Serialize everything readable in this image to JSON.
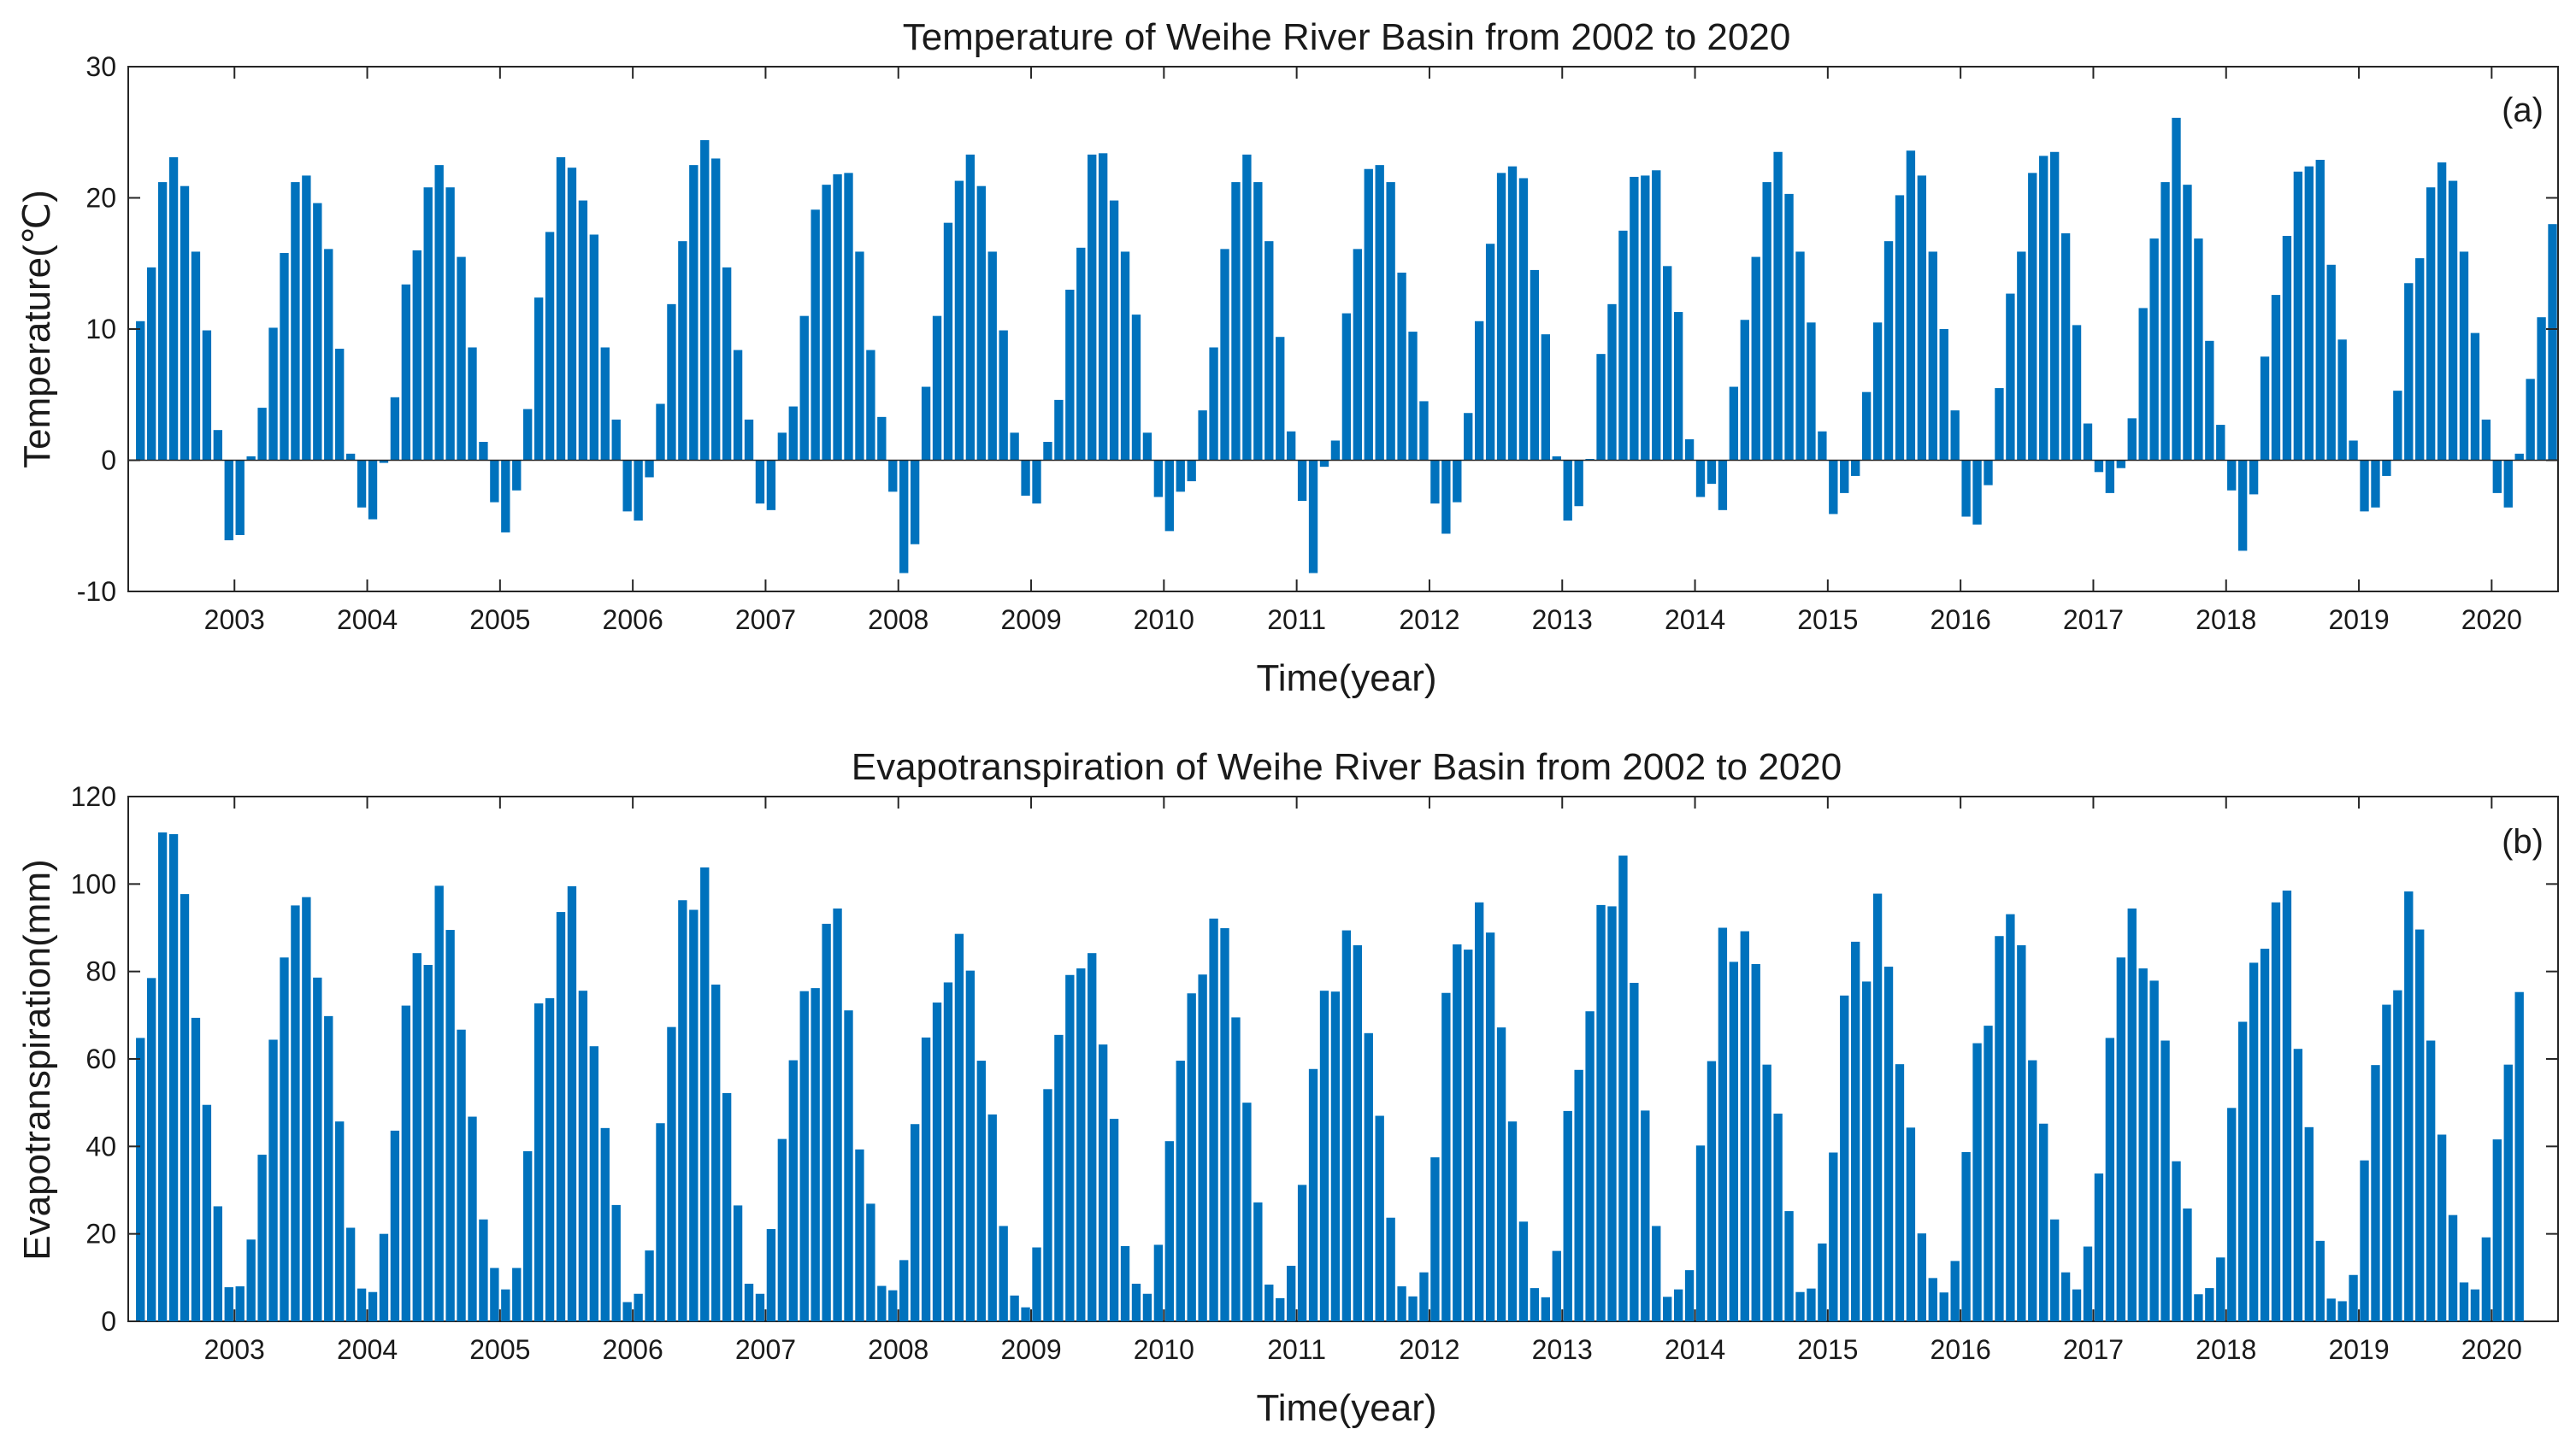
{
  "colors": {
    "bar": "#0072BD",
    "axis": "#262626",
    "background": "#ffffff"
  },
  "chart_data": [
    {
      "type": "bar",
      "panel_tag": "(a)",
      "title": "Temperature of Weihe River Basin from 2002 to 2020",
      "xlabel": "Time(year)",
      "ylabel": "Temperature(℃)",
      "ylim": [
        -10,
        30
      ],
      "yticks": [
        -10,
        0,
        10,
        20,
        30
      ],
      "ytick_labels": [
        "-10",
        "0",
        "10",
        "20",
        "30"
      ],
      "xticks": [
        2003,
        2004,
        2005,
        2006,
        2007,
        2008,
        2009,
        2010,
        2011,
        2012,
        2013,
        2014,
        2015,
        2016,
        2017,
        2018,
        2019,
        2020
      ],
      "xtick_labels": [
        "2003",
        "2004",
        "2005",
        "2006",
        "2007",
        "2008",
        "2009",
        "2010",
        "2011",
        "2012",
        "2013",
        "2014",
        "2015",
        "2016",
        "2017",
        "2018",
        "2019",
        "2020"
      ],
      "x_range": [
        2002.2,
        2020.5
      ],
      "start_month": "2002-04",
      "values": [
        10.6,
        14.7,
        21.2,
        23.1,
        20.9,
        15.9,
        9.9,
        2.3,
        -6.1,
        -5.7,
        0.3,
        4.0,
        10.1,
        15.8,
        21.2,
        21.7,
        19.6,
        16.1,
        8.5,
        0.5,
        -3.6,
        -4.5,
        -0.2,
        4.8,
        13.4,
        16.0,
        20.8,
        22.5,
        20.8,
        15.5,
        8.6,
        1.4,
        -3.2,
        -5.5,
        -2.3,
        3.9,
        12.4,
        17.4,
        23.1,
        22.3,
        19.8,
        17.2,
        8.6,
        3.1,
        -3.9,
        -4.6,
        -1.3,
        4.3,
        11.9,
        16.7,
        22.5,
        24.4,
        23.0,
        14.7,
        8.4,
        3.1,
        -3.3,
        -3.8,
        2.1,
        4.1,
        11.0,
        19.1,
        21.0,
        21.8,
        21.9,
        15.9,
        8.4,
        3.3,
        -2.4,
        -8.6,
        -6.4,
        5.6,
        11.0,
        18.1,
        21.3,
        23.3,
        20.9,
        15.9,
        9.9,
        2.1,
        -2.7,
        -3.3,
        1.4,
        4.6,
        13.0,
        16.2,
        23.3,
        23.4,
        19.8,
        15.9,
        11.1,
        2.1,
        -2.8,
        -5.4,
        -2.4,
        -1.6,
        3.8,
        8.6,
        16.1,
        21.2,
        23.3,
        21.2,
        16.7,
        9.4,
        2.2,
        -3.1,
        -8.6,
        -0.5,
        1.5,
        11.2,
        16.1,
        22.2,
        22.5,
        21.2,
        14.3,
        9.8,
        4.5,
        -3.3,
        -5.6,
        -3.2,
        3.6,
        10.6,
        16.5,
        21.9,
        22.4,
        21.5,
        14.5,
        9.6,
        0.3,
        -4.6,
        -3.5,
        0.1,
        8.1,
        11.9,
        17.5,
        21.6,
        21.7,
        22.1,
        14.8,
        11.3,
        1.6,
        -2.8,
        -1.8,
        -3.8,
        5.6,
        10.7,
        15.5,
        21.2,
        23.5,
        20.3,
        15.9,
        10.5,
        2.2,
        -4.1,
        -2.5,
        -1.2,
        5.2,
        10.5,
        16.7,
        20.2,
        23.6,
        21.7,
        15.9,
        10.0,
        3.8,
        -4.3,
        -4.9,
        -1.9,
        5.5,
        12.7,
        15.9,
        21.9,
        23.2,
        23.5,
        17.3,
        10.3,
        2.8,
        -0.9,
        -2.5,
        -0.6,
        3.2,
        11.6,
        16.9,
        21.2,
        26.1,
        21.0,
        16.9,
        9.1,
        2.7,
        -2.3,
        -6.9,
        -2.6,
        7.9,
        12.6,
        17.1,
        22.0,
        22.4,
        22.9,
        14.9,
        9.2,
        1.5,
        -3.9,
        -3.6,
        -1.2,
        5.3,
        13.5,
        15.4,
        20.8,
        22.7,
        21.3,
        15.9,
        9.7,
        3.1,
        -2.5,
        -3.6,
        0.5,
        6.2,
        10.9,
        18.0
      ]
    },
    {
      "type": "bar",
      "panel_tag": "(b)",
      "title": "Evapotranspiration of Weihe River Basin from 2002 to 2020",
      "xlabel": "Time(year)",
      "ylabel": "Evapotranspiration(mm)",
      "ylim": [
        0,
        120
      ],
      "yticks": [
        0,
        20,
        40,
        60,
        80,
        100,
        120
      ],
      "ytick_labels": [
        "0",
        "20",
        "40",
        "60",
        "80",
        "100",
        "120"
      ],
      "xticks": [
        2003,
        2004,
        2005,
        2006,
        2007,
        2008,
        2009,
        2010,
        2011,
        2012,
        2013,
        2014,
        2015,
        2016,
        2017,
        2018,
        2019,
        2020
      ],
      "xtick_labels": [
        "2003",
        "2004",
        "2005",
        "2006",
        "2007",
        "2008",
        "2009",
        "2010",
        "2011",
        "2012",
        "2013",
        "2014",
        "2015",
        "2016",
        "2017",
        "2018",
        "2019",
        "2020"
      ],
      "x_range": [
        2002.2,
        2020.5
      ],
      "start_month": "2002-04",
      "values": [
        64.8,
        78.5,
        111.8,
        111.4,
        97.7,
        69.4,
        49.5,
        26.3,
        7.8,
        8.0,
        18.7,
        38.1,
        64.4,
        83.2,
        95.1,
        97.0,
        78.6,
        69.8,
        45.7,
        21.4,
        7.5,
        6.7,
        20.0,
        43.6,
        72.2,
        84.2,
        81.5,
        99.6,
        89.5,
        66.7,
        46.8,
        23.3,
        12.2,
        7.3,
        12.2,
        38.9,
        72.7,
        73.9,
        93.6,
        99.5,
        75.6,
        62.9,
        44.2,
        26.6,
        4.4,
        6.3,
        16.2,
        45.3,
        67.3,
        96.3,
        94.1,
        103.8,
        77.0,
        52.2,
        26.5,
        8.6,
        6.3,
        21.1,
        41.7,
        59.7,
        75.5,
        76.2,
        90.9,
        94.4,
        71.1,
        39.3,
        26.9,
        8.1,
        7.1,
        14.0,
        45.1,
        64.9,
        72.9,
        77.5,
        88.6,
        80.2,
        59.6,
        47.3,
        21.8,
        5.9,
        3.2,
        16.9,
        53.1,
        65.5,
        79.2,
        80.7,
        84.2,
        63.3,
        46.3,
        17.2,
        8.6,
        6.3,
        17.5,
        41.2,
        59.6,
        75.0,
        79.3,
        92.1,
        89.9,
        69.5,
        50.0,
        27.2,
        8.4,
        5.3,
        12.7,
        31.2,
        57.7,
        75.6,
        75.4,
        89.4,
        86.0,
        65.9,
        47.0,
        23.7,
        8.0,
        5.7,
        11.2,
        37.5,
        75.1,
        86.2,
        85.0,
        95.8,
        88.9,
        67.2,
        45.7,
        22.8,
        7.6,
        5.5,
        16.1,
        48.1,
        57.5,
        70.9,
        95.2,
        94.9,
        106.5,
        77.4,
        48.2,
        21.8,
        5.6,
        7.3,
        11.7,
        40.2,
        59.5,
        90.0,
        82.2,
        89.2,
        81.7,
        58.7,
        47.5,
        25.2,
        6.7,
        7.5,
        17.8,
        38.6,
        74.5,
        86.8,
        77.7,
        97.8,
        81.1,
        58.8,
        44.3,
        20.1,
        9.9,
        6.6,
        13.8,
        38.7,
        63.6,
        67.6,
        88.1,
        93.1,
        86.0,
        59.7,
        45.2,
        23.3,
        11.2,
        7.3,
        17.1,
        33.8,
        64.8,
        83.2,
        94.4,
        80.7,
        77.9,
        64.2,
        36.6,
        25.8,
        6.2,
        7.6,
        14.6,
        48.8,
        68.5,
        82.0,
        85.2,
        95.8,
        98.5,
        62.3,
        44.4,
        18.4,
        5.2,
        4.6,
        10.6,
        36.8,
        58.6,
        72.4,
        75.7,
        98.3,
        89.6,
        64.2,
        42.7,
        24.3,
        8.9,
        7.3,
        19.2,
        41.6,
        58.7,
        75.3
      ]
    }
  ]
}
